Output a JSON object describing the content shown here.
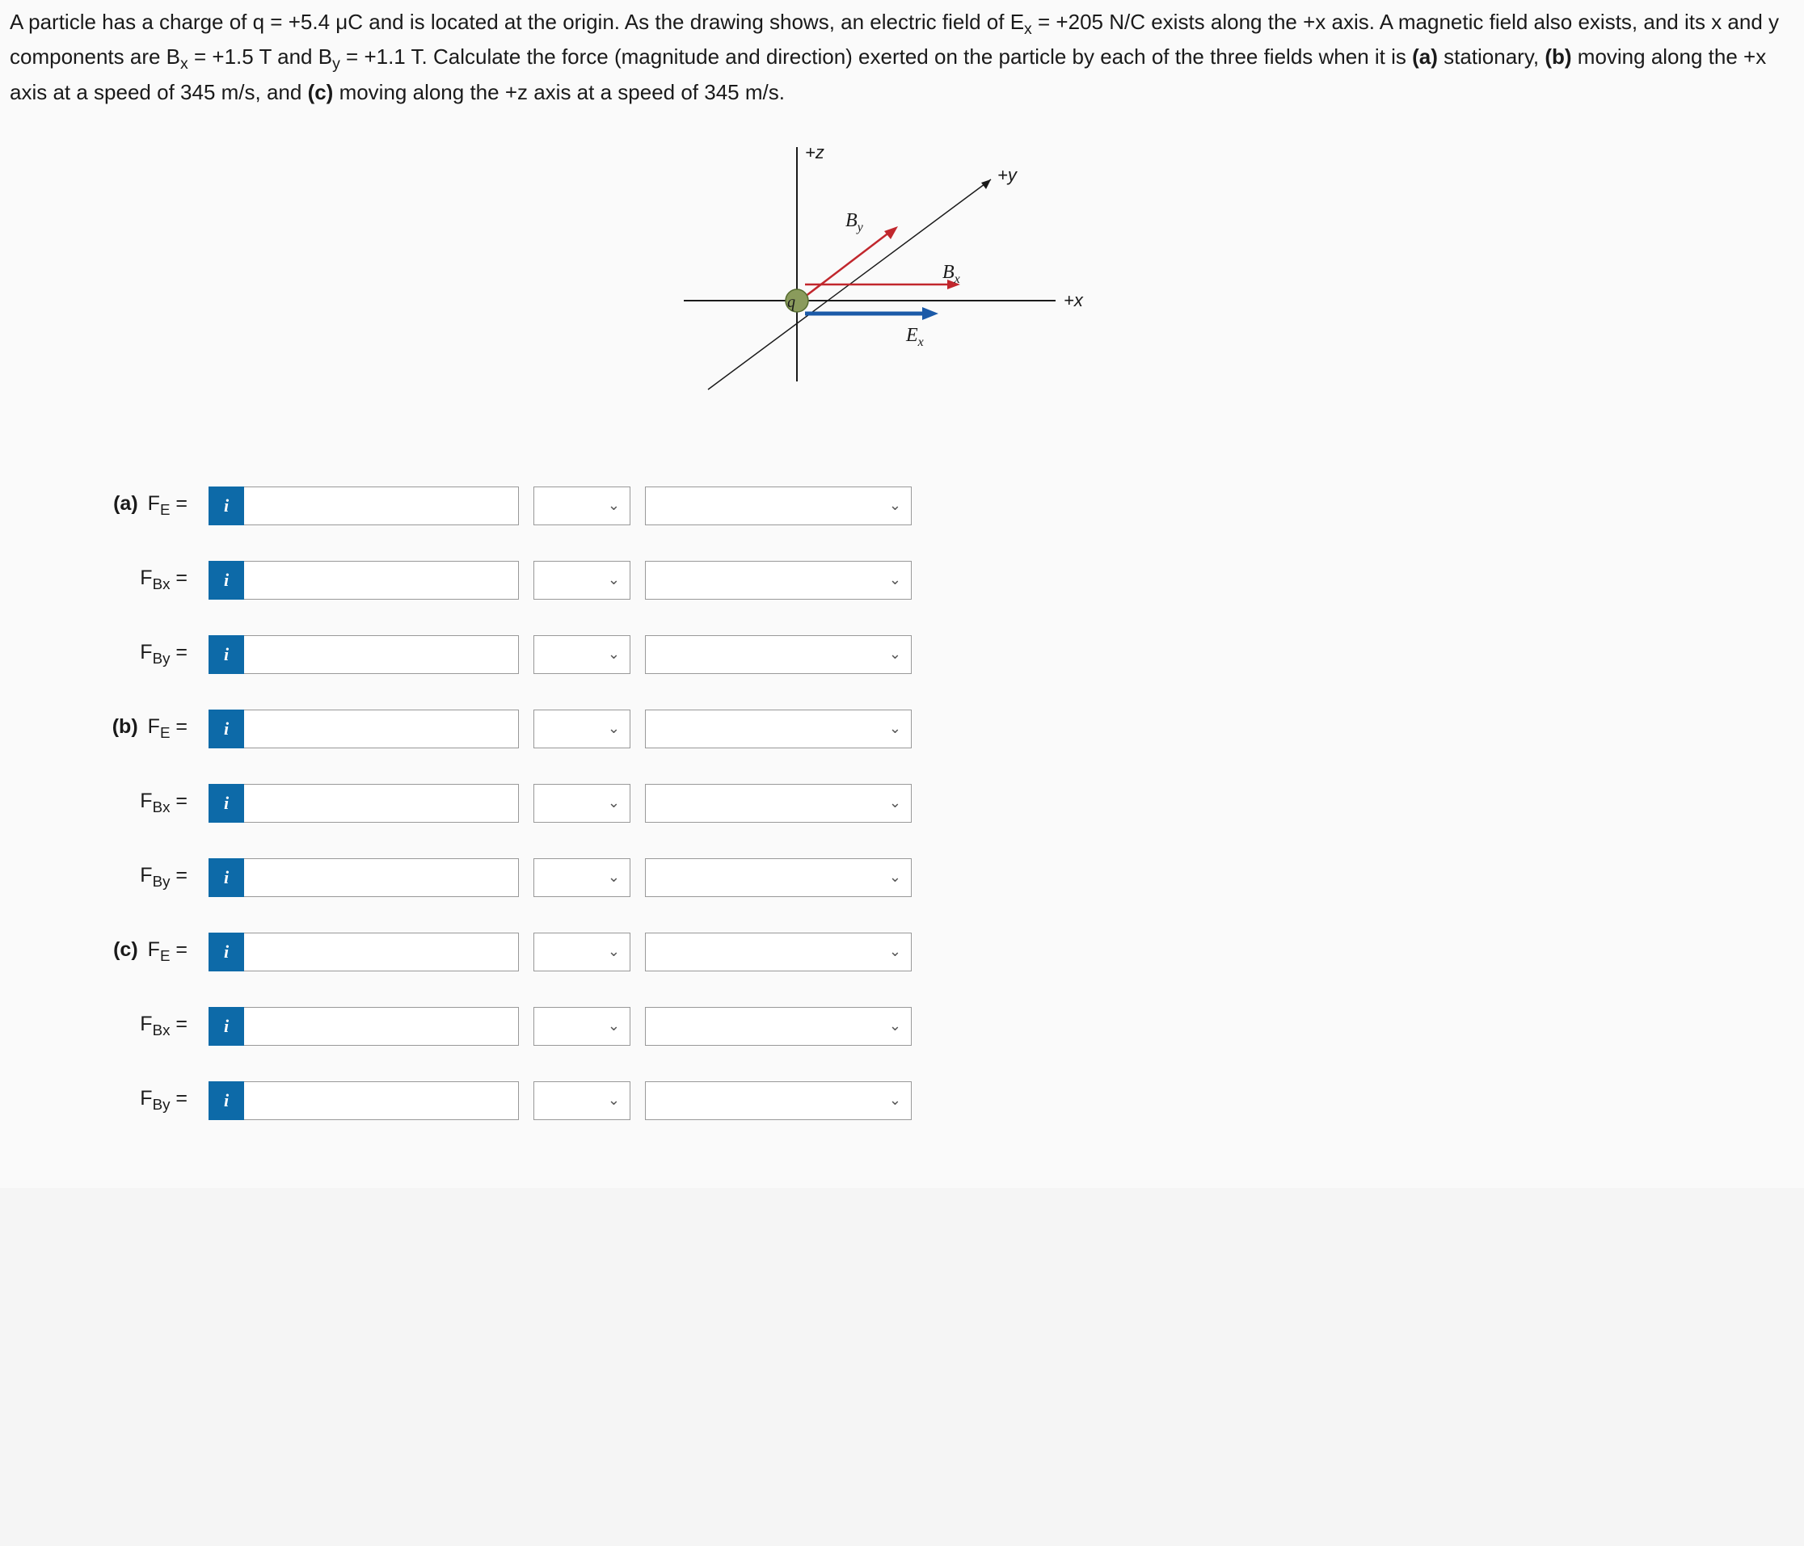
{
  "question": {
    "text_parts": [
      "A particle has a charge of q = +5.4 μC and is located at the origin. As the drawing shows, an electric field of E",
      "x",
      " = +205 N/C exists along the +x axis. A magnetic field also exists, and its x and y components are B",
      "x",
      " = +1.5 T and B",
      "y",
      " = +1.1 T. Calculate the force (magnitude and direction) exerted on the particle by each of the three fields when it is ",
      "(a)",
      " stationary, ",
      "(b)",
      " moving along the +x axis at a speed of 345 m/s, and ",
      "(c)",
      " moving along the +z axis at a speed of 345 m/s."
    ]
  },
  "diagram": {
    "labels": {
      "z": "+z",
      "y": "+y",
      "x": "+x",
      "By": "B",
      "By_sub": "y",
      "Bx": "B",
      "Bx_sub": "x",
      "Ex": "E",
      "Ex_sub": "x",
      "q": "q"
    },
    "colors": {
      "axis": "#1a1a1a",
      "B": "#c1272d",
      "E": "#1b5aa8",
      "q_fill": "#8a9b5c",
      "q_stroke": "#556b2f"
    }
  },
  "rows": [
    {
      "part": "(a)",
      "label": "F",
      "sub": "E",
      "value": "",
      "unit": "",
      "dir": ""
    },
    {
      "part": "",
      "label": "F",
      "sub": "Bx",
      "value": "",
      "unit": "",
      "dir": ""
    },
    {
      "part": "",
      "label": "F",
      "sub": "By",
      "value": "",
      "unit": "",
      "dir": ""
    },
    {
      "part": "(b)",
      "label": "F",
      "sub": "E",
      "value": "",
      "unit": "",
      "dir": ""
    },
    {
      "part": "",
      "label": "F",
      "sub": "Bx",
      "value": "",
      "unit": "",
      "dir": ""
    },
    {
      "part": "",
      "label": "F",
      "sub": "By",
      "value": "",
      "unit": "",
      "dir": ""
    },
    {
      "part": "(c)",
      "label": "F",
      "sub": "E",
      "value": "",
      "unit": "",
      "dir": ""
    },
    {
      "part": "",
      "label": "F",
      "sub": "Bx",
      "value": "",
      "unit": "",
      "dir": ""
    },
    {
      "part": "",
      "label": "F",
      "sub": "By",
      "value": "",
      "unit": "",
      "dir": ""
    }
  ],
  "info_badge": "i"
}
